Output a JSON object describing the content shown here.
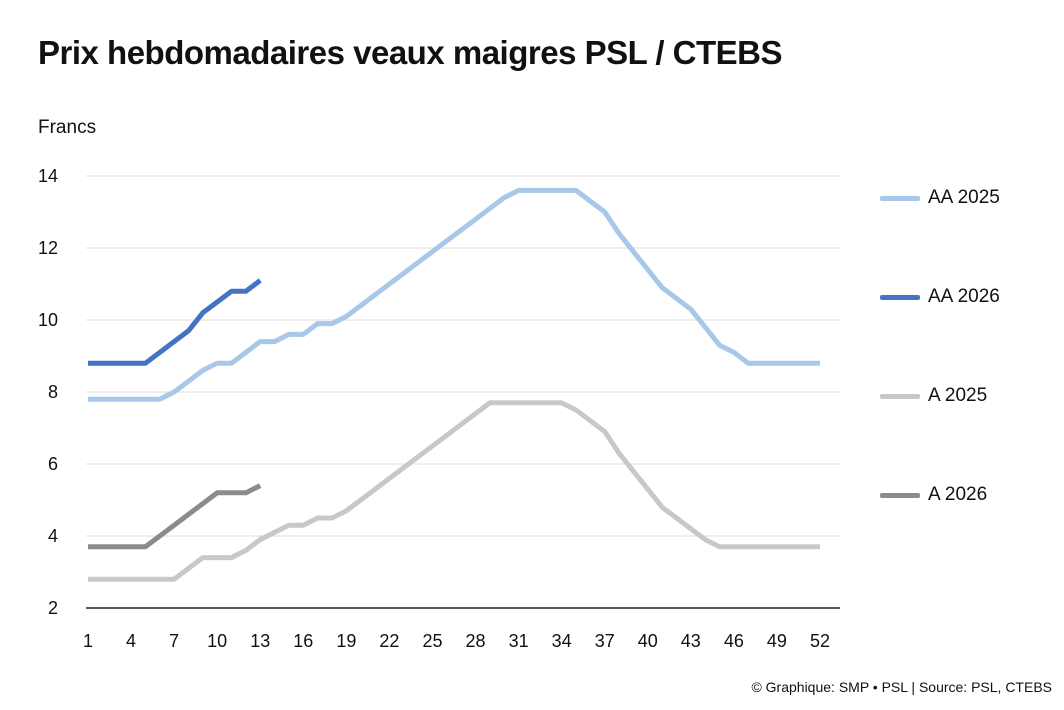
{
  "title": "Prix hebdomadaires veaux maigres PSL / CTEBS",
  "credit": "© Graphique: SMP • PSL | Source: PSL, CTEBS",
  "chart_data": {
    "type": "line",
    "ylabel": "Francs",
    "xlim": [
      1,
      52
    ],
    "ylim": [
      2,
      14
    ],
    "y_ticks": [
      2,
      4,
      6,
      8,
      10,
      12,
      14
    ],
    "x_ticks": [
      1,
      4,
      7,
      10,
      13,
      16,
      19,
      22,
      25,
      28,
      31,
      34,
      37,
      40,
      43,
      46,
      49,
      52
    ],
    "grid": "horizontal",
    "legend": "right",
    "series": [
      {
        "name": "AA 2025",
        "color": "#a8c8ea",
        "x": [
          1,
          2,
          3,
          4,
          5,
          6,
          7,
          8,
          9,
          10,
          11,
          12,
          13,
          14,
          15,
          16,
          17,
          18,
          19,
          20,
          21,
          22,
          23,
          24,
          25,
          26,
          27,
          28,
          29,
          30,
          31,
          32,
          33,
          34,
          35,
          36,
          37,
          38,
          39,
          40,
          41,
          42,
          43,
          44,
          45,
          46,
          47,
          48,
          49,
          50,
          51,
          52
        ],
        "values": [
          7.8,
          7.8,
          7.8,
          7.8,
          7.8,
          7.8,
          8.0,
          8.3,
          8.6,
          8.8,
          8.8,
          9.1,
          9.4,
          9.4,
          9.6,
          9.6,
          9.9,
          9.9,
          10.1,
          10.4,
          10.7,
          11.0,
          11.3,
          11.6,
          11.9,
          12.2,
          12.5,
          12.8,
          13.1,
          13.4,
          13.6,
          13.6,
          13.6,
          13.6,
          13.6,
          13.3,
          13.0,
          12.4,
          11.9,
          11.4,
          10.9,
          10.6,
          10.3,
          9.8,
          9.3,
          9.1,
          8.8,
          8.8,
          8.8,
          8.8,
          8.8,
          8.8
        ]
      },
      {
        "name": "AA 2026",
        "color": "#4472c4",
        "x": [
          1,
          2,
          3,
          4,
          5,
          6,
          7,
          8,
          9,
          10,
          11,
          12,
          13
        ],
        "values": [
          8.8,
          8.8,
          8.8,
          8.8,
          8.8,
          9.1,
          9.4,
          9.7,
          10.2,
          10.5,
          10.8,
          10.8,
          11.1
        ]
      },
      {
        "name": "A 2025",
        "color": "#c6c9cc",
        "x": [
          1,
          2,
          3,
          4,
          5,
          6,
          7,
          8,
          9,
          10,
          11,
          12,
          13,
          14,
          15,
          16,
          17,
          18,
          19,
          20,
          21,
          22,
          23,
          24,
          25,
          26,
          27,
          28,
          29,
          30,
          31,
          32,
          33,
          34,
          35,
          36,
          37,
          38,
          39,
          40,
          41,
          42,
          43,
          44,
          45,
          46,
          47,
          48,
          49,
          50,
          51,
          52
        ],
        "values": [
          2.8,
          2.8,
          2.8,
          2.8,
          2.8,
          2.8,
          2.8,
          3.1,
          3.4,
          3.4,
          3.4,
          3.6,
          3.9,
          4.1,
          4.3,
          4.3,
          4.5,
          4.5,
          4.7,
          5.0,
          5.3,
          5.6,
          5.9,
          6.2,
          6.5,
          6.8,
          7.1,
          7.4,
          7.7,
          7.7,
          7.7,
          7.7,
          7.7,
          7.7,
          7.5,
          7.2,
          6.9,
          6.3,
          5.8,
          5.3,
          4.8,
          4.5,
          4.2,
          3.9,
          3.7,
          3.7,
          3.7,
          3.7,
          3.7,
          3.7,
          3.7,
          3.7
        ]
      },
      {
        "name": "A 2026",
        "color": "#888c90",
        "x": [
          1,
          2,
          3,
          4,
          5,
          6,
          7,
          8,
          9,
          10,
          11,
          12,
          13
        ],
        "values": [
          3.7,
          3.7,
          3.7,
          3.7,
          3.7,
          4.0,
          4.3,
          4.6,
          4.9,
          5.2,
          5.2,
          5.2,
          5.4
        ]
      }
    ]
  }
}
